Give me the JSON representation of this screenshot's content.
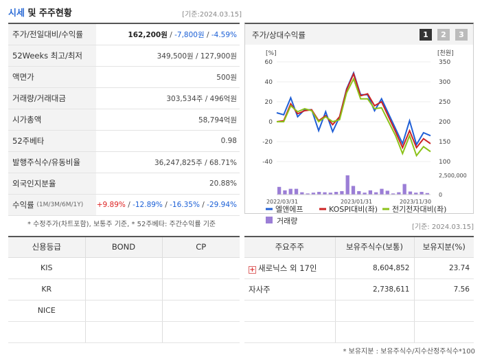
{
  "header": {
    "title_accent": "시세",
    "title_rest": " 및 주주현황",
    "date": "[기준:2024.03.15]"
  },
  "price_rows": [
    {
      "label": "주가/전일대비/수익률",
      "v1": "162,200원",
      "sep1": " / ",
      "v2": "-7,800원",
      "sep2": " / ",
      "v3": "-4.59%"
    },
    {
      "label": "52Weeks 최고/최저",
      "value": "349,500원 / 127,900원"
    },
    {
      "label": "액면가",
      "value": "500원"
    },
    {
      "label": "거래량/거래대금",
      "value": "303,534주 / 496억원"
    },
    {
      "label": "시가총액",
      "value": "58,794억원"
    },
    {
      "label": "52주베타",
      "value": "0.98"
    },
    {
      "label": "발행주식수/유동비율",
      "value": "36,247,825주 / 68.71%"
    },
    {
      "label": "외국인지분율",
      "value": "20.88%"
    },
    {
      "label": "수익률",
      "label_small": "(1M/3M/6M/1Y)",
      "r1": "+9.89%",
      "r2": "-12.89%",
      "r3": "-16.35%",
      "r4": "-29.94%",
      "sep": " / "
    }
  ],
  "price_note": "* 수정주가(차트포함), 보통주 기준, * 52주베타: 주간수익률 기준",
  "chart_panel": {
    "title": "주가/상대수익률",
    "pages": [
      "1",
      "2",
      "3"
    ]
  },
  "chart_data": {
    "type": "line",
    "x_ticks": [
      "2022/03/31",
      "2023/01/31",
      "2023/11/30"
    ],
    "left_axis_label": "[%]",
    "right_axis_label": "[천원]",
    "left_ticks": [
      60,
      40,
      20,
      0,
      -20,
      -40
    ],
    "right_ticks": [
      350,
      300,
      250,
      200,
      150,
      100
    ],
    "volume_ticks": [
      "2,500,000",
      "0"
    ],
    "ylim_left": [
      -40,
      60
    ],
    "ylim_right": [
      100,
      350
    ],
    "series": [
      {
        "name": "엘앤에프",
        "color": "#1f5fd6",
        "values": [
          9,
          7,
          24,
          5,
          12,
          12,
          -9,
          10,
          -10,
          5,
          33,
          49,
          27,
          27,
          11,
          23,
          8,
          -7,
          -22,
          1,
          -23,
          -11,
          -14
        ]
      },
      {
        "name": "KOSPI대비(좌)",
        "color": "#cc2222",
        "values": [
          0,
          1,
          18,
          8,
          11,
          12,
          1,
          6,
          -3,
          5,
          32,
          48,
          26,
          28,
          16,
          20,
          5,
          -10,
          -26,
          -9,
          -26,
          -17,
          -22
        ]
      },
      {
        "name": "전기전자대비(좌)",
        "color": "#8cc21a",
        "values": [
          0,
          0,
          16,
          10,
          13,
          11,
          0,
          5,
          0,
          2,
          29,
          43,
          23,
          23,
          13,
          14,
          0,
          -14,
          -32,
          -14,
          -34,
          -25,
          -30
        ]
      }
    ],
    "volume": {
      "name": "거래량",
      "color": "#9b7ed6",
      "values": [
        0.4,
        0.22,
        0.3,
        0.3,
        0.12,
        0.06,
        0.1,
        0.14,
        0.12,
        0.1,
        0.14,
        0.18,
        1.0,
        0.45,
        0.18,
        0.1,
        0.22,
        0.12,
        0.3,
        0.2,
        0.06,
        0.12,
        0.55,
        0.16,
        0.1,
        0.14,
        0.08
      ]
    }
  },
  "rating_table": {
    "headers": [
      "신용등급",
      "BOND",
      "CP"
    ],
    "rows": [
      [
        "KIS",
        "",
        ""
      ],
      [
        "KR",
        "",
        ""
      ],
      [
        "NICE",
        "",
        ""
      ],
      [
        "",
        "",
        ""
      ]
    ]
  },
  "holder_date": "[기준: 2024.03.15]",
  "holder_table": {
    "headers": [
      "주요주주",
      "보유주식수(보통)",
      "보유지분(%)"
    ],
    "rows": [
      {
        "name": "새로닉스 외 17인",
        "shares": "8,604,852",
        "pct": "23.74"
      },
      {
        "name": "자사주",
        "shares": "2,738,611",
        "pct": "7.56"
      },
      {
        "name": "",
        "shares": "",
        "pct": ""
      },
      {
        "name": "",
        "shares": "",
        "pct": ""
      }
    ]
  },
  "holder_note": "* 보유지분 : 보유주식수/지수산정주식수*100"
}
